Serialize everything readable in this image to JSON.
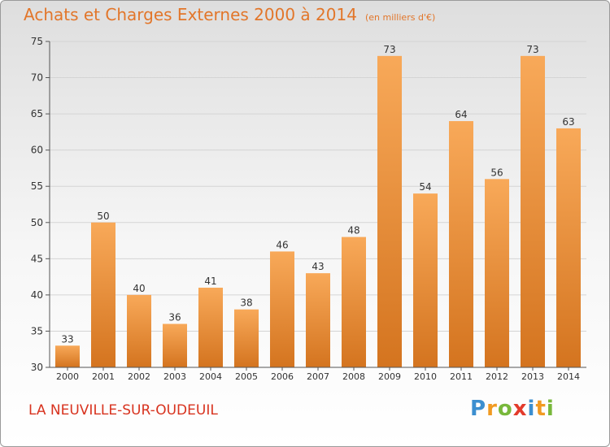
{
  "title": "Achats et Charges Externes 2000 à 2014",
  "unit": "(en milliers d'€)",
  "commune": "LA NEUVILLE-SUR-OUDEUIL",
  "logo": {
    "letters": [
      "P",
      "r",
      "o",
      "x",
      "i",
      "t",
      "i"
    ],
    "colors": [
      "#3c8fd0",
      "#f19a22",
      "#78b83b",
      "#e33b2b",
      "#3c8fd0",
      "#f19a22",
      "#78b83b"
    ]
  },
  "colors": {
    "bar_top": "#f8a959",
    "bar_bottom": "#d4741f",
    "label": "#333333",
    "grid": "#d4d4d4"
  },
  "chart_data": {
    "type": "bar",
    "title": "Achats et Charges Externes 2000 à 2014",
    "categories": [
      "2000",
      "2001",
      "2002",
      "2003",
      "2004",
      "2005",
      "2006",
      "2007",
      "2008",
      "2009",
      "2010",
      "2011",
      "2012",
      "2013",
      "2014"
    ],
    "values": [
      33,
      50,
      40,
      36,
      41,
      38,
      46,
      43,
      48,
      73,
      54,
      64,
      56,
      73,
      63
    ],
    "ylim": [
      30,
      75
    ],
    "yticks": [
      30,
      35,
      40,
      45,
      50,
      55,
      60,
      65,
      70,
      75
    ],
    "grid": true,
    "data_labels": true
  }
}
